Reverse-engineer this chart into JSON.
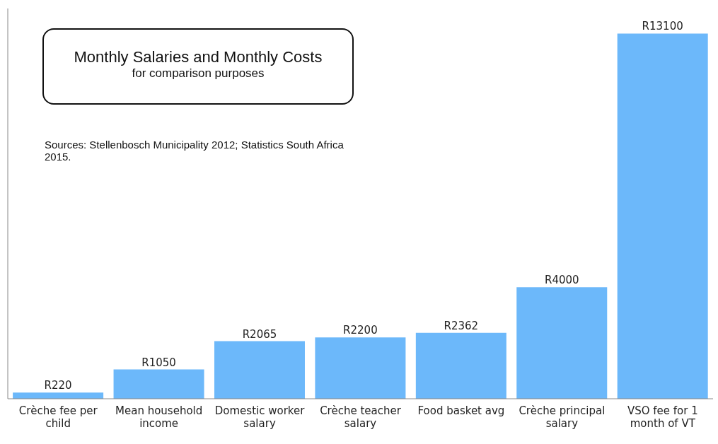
{
  "chart_data": {
    "type": "bar",
    "title": "Monthly Salaries and Monthly Costs",
    "subtitle": "for comparison purposes",
    "annotations": [
      "Sources: Stellenbosch Municipality 2012; Statistics South Africa 2015."
    ],
    "categories": [
      "Crèche fee per child",
      "Mean household income",
      "Domestic worker salary",
      "Crèche teacher salary",
      "Food basket avg",
      "Crèche principal salary",
      "VSO fee for 1 month of VT"
    ],
    "values": [
      220,
      1050,
      2065,
      2200,
      2362,
      4000,
      13100
    ],
    "value_labels": [
      "R220",
      "R1050",
      "R2065",
      "R2200",
      "R2362",
      "R4000",
      "R13100"
    ],
    "color": "#6cb8fa",
    "ylim": [
      0,
      14000
    ],
    "tick_labels": "x"
  }
}
